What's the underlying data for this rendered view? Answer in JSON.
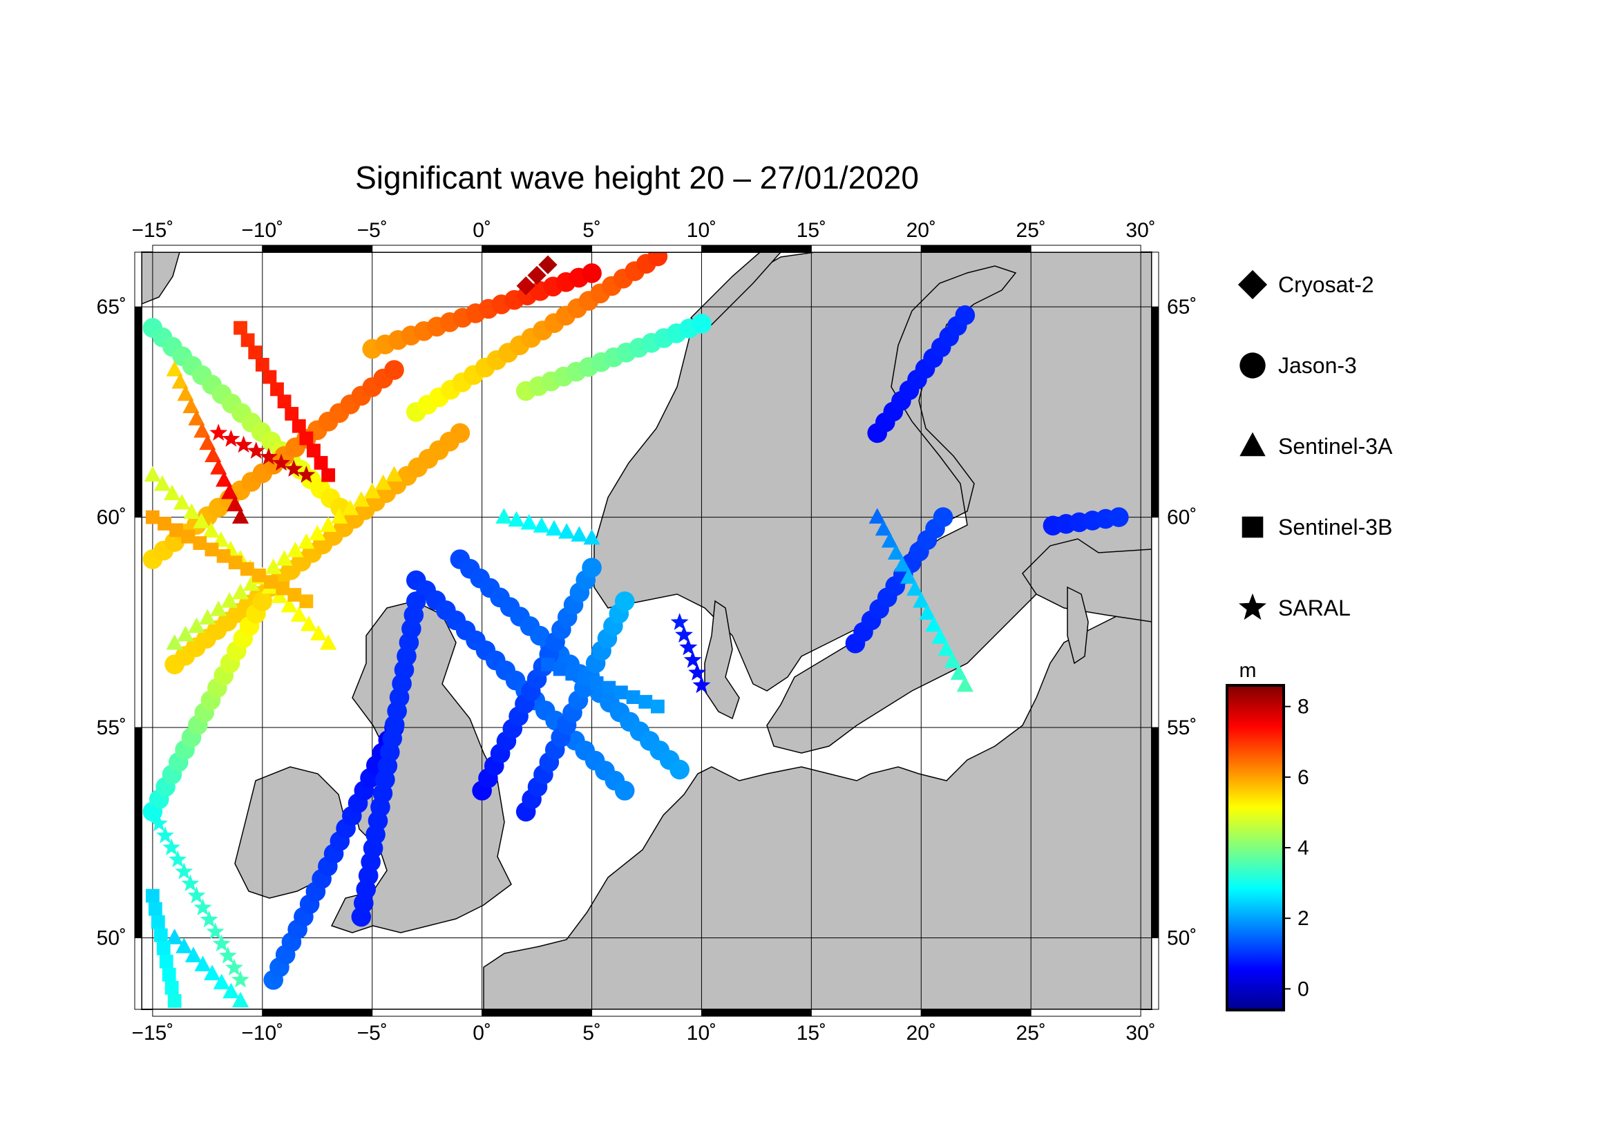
{
  "title": "Significant wave height 20 – 27/01/2020",
  "map": {
    "lon_range": [
      -15.5,
      30.5
    ],
    "lat_range": [
      48.3,
      66.3
    ],
    "lon_ticks": [
      -15,
      -10,
      -5,
      0,
      5,
      10,
      15,
      20,
      25,
      30
    ],
    "lat_ticks": [
      50,
      55,
      60,
      65
    ],
    "lon_tick_labels": [
      "−15˚",
      "−10˚",
      "−5˚",
      "0˚",
      "5˚",
      "10˚",
      "15˚",
      "20˚",
      "25˚",
      "30˚"
    ],
    "lat_tick_labels": [
      "50˚",
      "55˚",
      "60˚",
      "65˚"
    ],
    "land_color": "#bebebe",
    "sea_color": "#ffffff",
    "grid": true
  },
  "legend": {
    "items": [
      {
        "label": "Cryosat-2",
        "symbol": "diamond"
      },
      {
        "label": "Jason-3",
        "symbol": "circle"
      },
      {
        "label": "Sentinel-3A",
        "symbol": "triangle"
      },
      {
        "label": "Sentinel-3B",
        "symbol": "square"
      },
      {
        "label": "SARAL",
        "symbol": "star"
      }
    ]
  },
  "colorbar": {
    "unit": "m",
    "range": [
      -0.6,
      8.6
    ],
    "ticks": [
      "0",
      "2",
      "4",
      "6",
      "8"
    ],
    "colormap": "jet"
  },
  "chart_data": {
    "type": "scatter",
    "title": "Significant wave height 20 – 27/01/2020",
    "xlim": [
      -15.5,
      30.5
    ],
    "ylim": [
      48.3,
      66.3
    ],
    "value_unit": "m",
    "tracks": [
      {
        "satellite": "Jason-3",
        "from": [
          -15,
          64.5
        ],
        "to": [
          -6,
          60.0
        ],
        "hs": [
          3.5,
          5.5
        ]
      },
      {
        "satellite": "Jason-3",
        "from": [
          -15,
          59.0
        ],
        "to": [
          -4,
          63.5
        ],
        "hs": [
          5.5,
          6.8
        ]
      },
      {
        "satellite": "Jason-3",
        "from": [
          -5,
          64.0
        ],
        "to": [
          5,
          65.8
        ],
        "hs": [
          6.0,
          7.5
        ]
      },
      {
        "satellite": "Jason-3",
        "from": [
          -3,
          62.5
        ],
        "to": [
          8,
          66.2
        ],
        "hs": [
          5.0,
          7.0
        ]
      },
      {
        "satellite": "Jason-3",
        "from": [
          -14,
          56.5
        ],
        "to": [
          -1,
          62.0
        ],
        "hs": [
          5.5,
          6.0
        ]
      },
      {
        "satellite": "Jason-3",
        "from": [
          -15,
          53.0
        ],
        "to": [
          -10,
          58.0
        ],
        "hs": [
          3.0,
          5.5
        ]
      },
      {
        "satellite": "Jason-3",
        "from": [
          2,
          63.0
        ],
        "to": [
          10,
          64.6
        ],
        "hs": [
          4.5,
          3.0
        ]
      },
      {
        "satellite": "Jason-3",
        "from": [
          -3,
          58.5
        ],
        "to": [
          6.5,
          53.5
        ],
        "hs": [
          1.0,
          1.8
        ]
      },
      {
        "satellite": "Jason-3",
        "from": [
          -1,
          59.0
        ],
        "to": [
          9,
          54.0
        ],
        "hs": [
          1.2,
          2.0
        ]
      },
      {
        "satellite": "Jason-3",
        "from": [
          0,
          53.5
        ],
        "to": [
          5,
          58.8
        ],
        "hs": [
          0.6,
          1.8
        ]
      },
      {
        "satellite": "Jason-3",
        "from": [
          2,
          53.0
        ],
        "to": [
          6.5,
          58.0
        ],
        "hs": [
          0.8,
          2.2
        ]
      },
      {
        "satellite": "Jason-3",
        "from": [
          -9.5,
          49.0
        ],
        "to": [
          -4,
          55.0
        ],
        "hs": [
          1.5,
          0.5
        ]
      },
      {
        "satellite": "Jason-3",
        "from": [
          -5.5,
          50.5
        ],
        "to": [
          -3,
          58.0
        ],
        "hs": [
          0.8,
          1.0
        ]
      },
      {
        "satellite": "Jason-3",
        "from": [
          17,
          57.0
        ],
        "to": [
          21,
          60.0
        ],
        "hs": [
          0.8,
          1.2
        ]
      },
      {
        "satellite": "Jason-3",
        "from": [
          18,
          62.0
        ],
        "to": [
          22,
          64.8
        ],
        "hs": [
          0.6,
          0.9
        ]
      },
      {
        "satellite": "Jason-3",
        "from": [
          26,
          59.8
        ],
        "to": [
          29,
          60.0
        ],
        "hs": [
          0.8,
          1.0
        ]
      },
      {
        "satellite": "Sentinel-3A",
        "from": [
          -14,
          63.5
        ],
        "to": [
          -11,
          60.0
        ],
        "hs": [
          5.5,
          8.0
        ]
      },
      {
        "satellite": "Sentinel-3A",
        "from": [
          -14,
          57.0
        ],
        "to": [
          -4,
          61.0
        ],
        "hs": [
          4.5,
          5.5
        ]
      },
      {
        "satellite": "Sentinel-3A",
        "from": [
          -15,
          61.0
        ],
        "to": [
          -7,
          57.0
        ],
        "hs": [
          4.8,
          5.2
        ]
      },
      {
        "satellite": "Sentinel-3A",
        "from": [
          1,
          60.0
        ],
        "to": [
          5,
          59.5
        ],
        "hs": [
          3.0,
          2.5
        ]
      },
      {
        "satellite": "Sentinel-3A",
        "from": [
          18,
          60.0
        ],
        "to": [
          22,
          56.0
        ],
        "hs": [
          1.5,
          3.5
        ]
      },
      {
        "satellite": "Sentinel-3A",
        "from": [
          -14,
          50.0
        ],
        "to": [
          -11,
          48.5
        ],
        "hs": [
          2.5,
          3.0
        ]
      },
      {
        "satellite": "Sentinel-3B",
        "from": [
          -11,
          64.5
        ],
        "to": [
          -7,
          61.0
        ],
        "hs": [
          7.0,
          7.5
        ]
      },
      {
        "satellite": "Sentinel-3B",
        "from": [
          -15,
          60.0
        ],
        "to": [
          -8,
          58.0
        ],
        "hs": [
          6.0,
          5.8
        ]
      },
      {
        "satellite": "Sentinel-3B",
        "from": [
          3,
          56.5
        ],
        "to": [
          8,
          55.5
        ],
        "hs": [
          1.5,
          2.0
        ]
      },
      {
        "satellite": "Sentinel-3B",
        "from": [
          -15,
          51.0
        ],
        "to": [
          -14,
          48.5
        ],
        "hs": [
          2.5,
          3.0
        ]
      },
      {
        "satellite": "SARAL",
        "from": [
          -12,
          62.0
        ],
        "to": [
          -8,
          61.0
        ],
        "hs": [
          7.5,
          8.0
        ]
      },
      {
        "satellite": "SARAL",
        "from": [
          -15,
          53.0
        ],
        "to": [
          -11,
          49.0
        ],
        "hs": [
          3.0,
          3.5
        ]
      },
      {
        "satellite": "SARAL",
        "from": [
          9,
          57.5
        ],
        "to": [
          10,
          56.0
        ],
        "hs": [
          0.8,
          0.6
        ]
      },
      {
        "satellite": "Cryosat-2",
        "from": [
          2,
          65.5
        ],
        "to": [
          3,
          66.0
        ],
        "hs": [
          8.0,
          8.2
        ]
      }
    ]
  }
}
